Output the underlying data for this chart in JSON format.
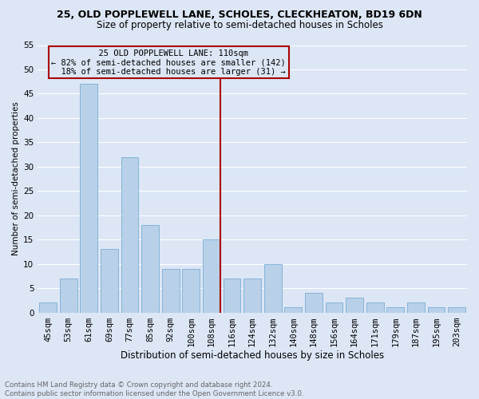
{
  "title_line1": "25, OLD POPPLEWELL LANE, SCHOLES, CLECKHEATON, BD19 6DN",
  "title_line2": "Size of property relative to semi-detached houses in Scholes",
  "xlabel": "Distribution of semi-detached houses by size in Scholes",
  "ylabel": "Number of semi-detached properties",
  "footer_line1": "Contains HM Land Registry data © Crown copyright and database right 2024.",
  "footer_line2": "Contains public sector information licensed under the Open Government Licence v3.0.",
  "annotation_title": "25 OLD POPPLEWELL LANE: 110sqm",
  "annotation_line1": "← 82% of semi-detached houses are smaller (142)",
  "annotation_line2": "18% of semi-detached houses are larger (31) →",
  "categories": [
    "45sqm",
    "53sqm",
    "61sqm",
    "69sqm",
    "77sqm",
    "85sqm",
    "92sqm",
    "100sqm",
    "108sqm",
    "116sqm",
    "124sqm",
    "132sqm",
    "140sqm",
    "148sqm",
    "156sqm",
    "164sqm",
    "171sqm",
    "179sqm",
    "187sqm",
    "195sqm",
    "203sqm"
  ],
  "values": [
    2,
    7,
    47,
    13,
    32,
    18,
    9,
    9,
    15,
    7,
    7,
    10,
    1,
    4,
    2,
    3,
    2,
    1,
    2,
    1,
    1
  ],
  "bar_color": "#b8d0e8",
  "bar_edge_color": "#7aadd4",
  "property_line_color": "#aa0000",
  "annotation_box_edge_color": "#aa0000",
  "background_color": "#dce6f5",
  "grid_color": "#ffffff",
  "ylim": [
    0,
    55
  ],
  "yticks": [
    0,
    5,
    10,
    15,
    20,
    25,
    30,
    35,
    40,
    45,
    50,
    55
  ],
  "property_bar_index": 8,
  "title1_fontsize": 9,
  "title2_fontsize": 8.5,
  "xlabel_fontsize": 8.5,
  "ylabel_fontsize": 7.5,
  "tick_fontsize": 7.5,
  "footer_fontsize": 6.2,
  "annotation_fontsize": 7.5
}
